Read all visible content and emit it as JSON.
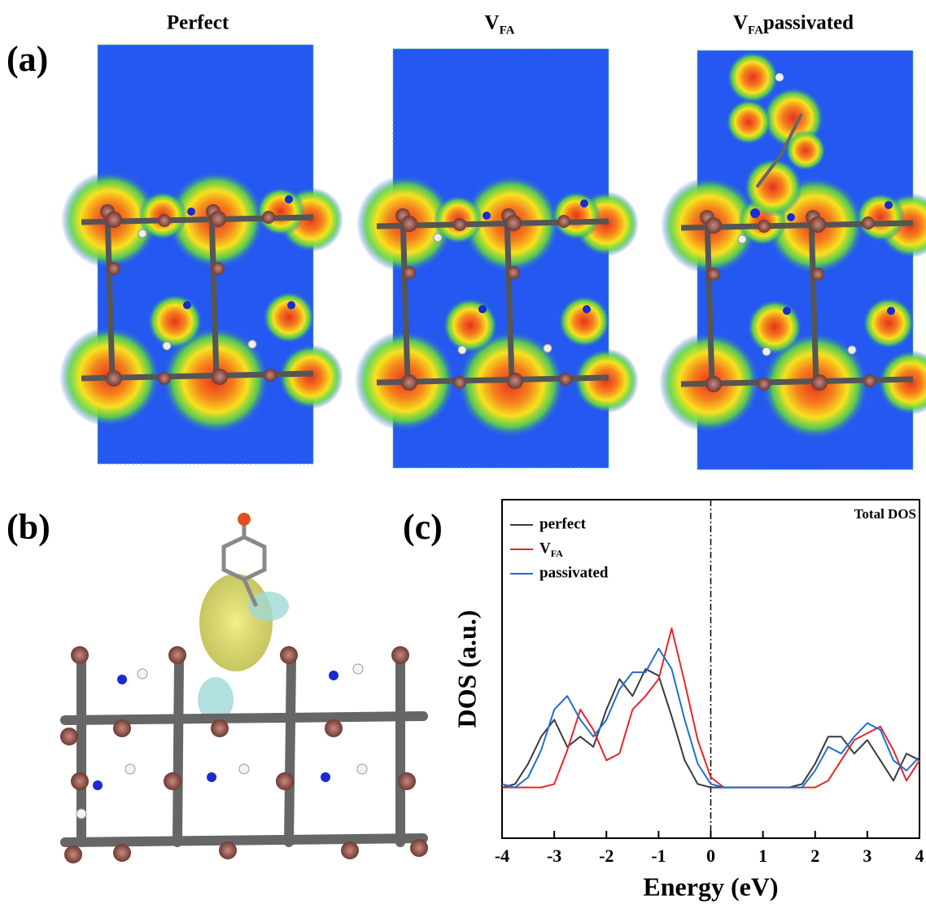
{
  "panel_a": {
    "label": "(a)",
    "titles": [
      {
        "text": "Perfect"
      },
      {
        "text": "V",
        "sub": "FA"
      },
      {
        "text": "V",
        "sub": "FA",
        "suffix": " passivated"
      }
    ]
  },
  "panel_b": {
    "label": "(b)"
  },
  "panel_c": {
    "label": "(c)"
  },
  "chart_data": {
    "type": "line",
    "annotation": "Total DOS",
    "xlabel": "Energy (eV)",
    "ylabel": "DOS (a.u.)",
    "xlim": [
      -4,
      4
    ],
    "xticks": [
      -4,
      -3,
      -2,
      -1,
      0,
      1,
      2,
      3,
      4
    ],
    "ylim": [
      0,
      10
    ],
    "vline": 0,
    "legend": "upper left",
    "x": [
      -4,
      -3.75,
      -3.5,
      -3.25,
      -3,
      -2.75,
      -2.5,
      -2.25,
      -2,
      -1.75,
      -1.5,
      -1.25,
      -1,
      -0.75,
      -0.5,
      -0.25,
      0,
      0.25,
      0.5,
      0.75,
      1,
      1.25,
      1.5,
      1.75,
      2,
      2.25,
      2.5,
      2.75,
      3,
      3.25,
      3.5,
      3.75,
      4
    ],
    "series": [
      {
        "name": "perfect",
        "color": "#3a3a3a",
        "values": [
          1.5,
          1.6,
          2.2,
          3.0,
          3.5,
          2.7,
          3.0,
          2.7,
          3.8,
          4.7,
          4.2,
          5.0,
          4.8,
          3.6,
          2.3,
          1.6,
          1.5,
          1.5,
          1.5,
          1.5,
          1.5,
          1.5,
          1.5,
          1.6,
          2.2,
          3.0,
          3.0,
          2.5,
          2.9,
          2.3,
          1.7,
          2.5,
          2.3
        ]
      },
      {
        "name": "V",
        "name_sub": "FA",
        "color": "#e8262a",
        "values": [
          1.5,
          1.5,
          1.5,
          1.5,
          1.6,
          2.6,
          3.8,
          3.2,
          2.3,
          2.5,
          3.8,
          4.2,
          4.7,
          6.2,
          4.6,
          2.9,
          1.8,
          1.5,
          1.5,
          1.5,
          1.5,
          1.5,
          1.5,
          1.5,
          1.5,
          1.7,
          2.3,
          2.9,
          3.1,
          3.3,
          2.6,
          1.7,
          2.3
        ]
      },
      {
        "name": "passivated",
        "color": "#1f6fd0",
        "values": [
          1.6,
          1.5,
          1.8,
          2.6,
          3.8,
          4.2,
          3.5,
          3.0,
          3.5,
          4.4,
          4.9,
          4.9,
          5.6,
          5.0,
          3.5,
          2.2,
          1.6,
          1.5,
          1.5,
          1.5,
          1.5,
          1.5,
          1.5,
          1.5,
          2.0,
          2.7,
          2.5,
          3.0,
          3.4,
          3.2,
          2.3,
          2.0,
          2.4
        ]
      }
    ]
  }
}
